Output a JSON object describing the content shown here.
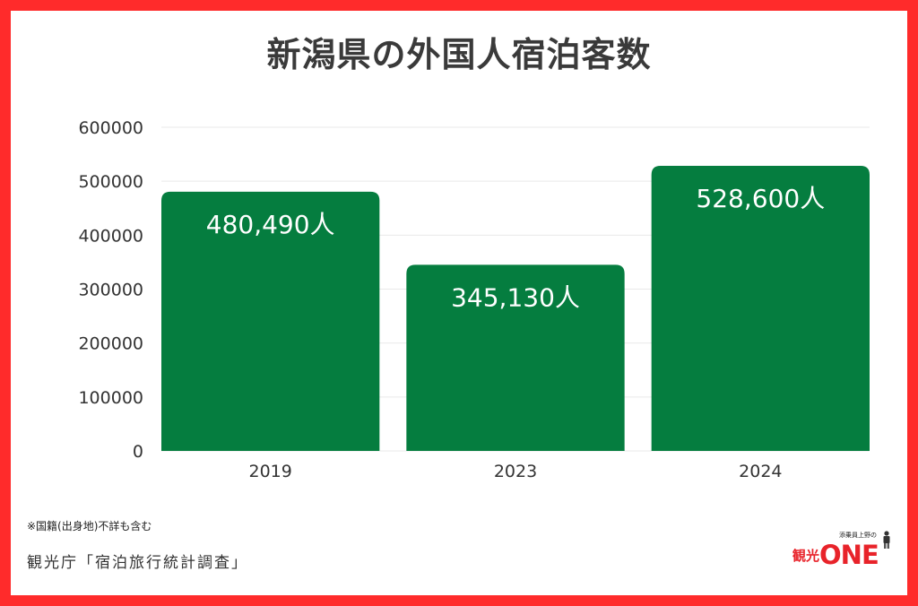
{
  "title": "新潟県の外国人宿泊客数",
  "note": "※国籍(出身地)不詳も含む",
  "source": "観光庁「宿泊旅行統計調査」",
  "logo": {
    "tagline": "添乗員上野の",
    "kanji": "観光",
    "brand": "ONE"
  },
  "colors": {
    "bar": "#057d3f",
    "frame": "#ff2b2b",
    "grid": "#e9e9e9",
    "logo": "#e8232a"
  },
  "chart_data": {
    "type": "bar",
    "title": "新潟県の外国人宿泊客数",
    "categories": [
      "2019",
      "2023",
      "2024"
    ],
    "values": [
      480490,
      345130,
      528600
    ],
    "data_labels": [
      "480,490人",
      "345,130人",
      "528,600人"
    ],
    "yticks": [
      "0",
      "100000",
      "200000",
      "300000",
      "400000",
      "500000",
      "600000"
    ],
    "ylim": [
      0,
      600000
    ],
    "xlabel": "",
    "ylabel": "",
    "grid": true,
    "legend": "none"
  }
}
